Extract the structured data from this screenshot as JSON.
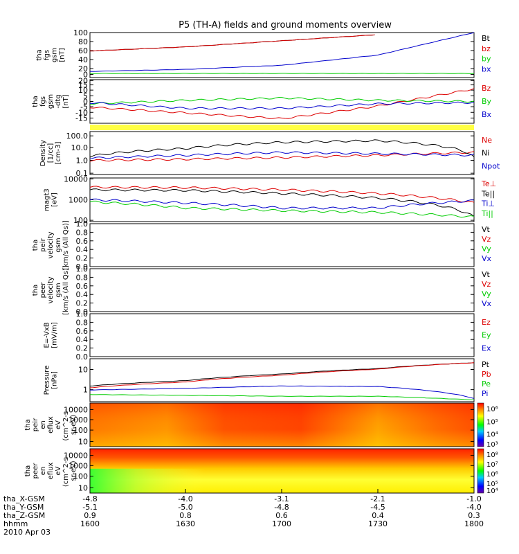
{
  "title": "P5 (TH-A) fields and ground moments overview",
  "colors": {
    "black": "#000000",
    "red": "#dd0000",
    "green": "#00cc00",
    "blue": "#0000cc",
    "yellow": "#ffff44"
  },
  "panels": [
    {
      "ylabel": [
        "tha",
        "fgs",
        "gsm",
        "[nT]"
      ],
      "ticks": [
        "100",
        "80",
        "60",
        "40",
        "20",
        "0"
      ],
      "legend": [
        {
          "t": "Bt",
          "c": "black"
        },
        {
          "t": "bz",
          "c": "red"
        },
        {
          "t": "by",
          "c": "green"
        },
        {
          "t": "bx",
          "c": "blue"
        }
      ]
    },
    {
      "ylabel": [
        "tha",
        "fgs",
        "gsm",
        "-dtg",
        "[nT]"
      ],
      "ticks": [
        "20",
        "15",
        "10",
        "5",
        "0",
        "-5",
        "-10",
        "-15"
      ],
      "legend": [
        {
          "t": "Bz",
          "c": "red"
        },
        {
          "t": "By",
          "c": "green"
        },
        {
          "t": "Bx",
          "c": "blue"
        }
      ]
    },
    {
      "ylabel": [
        "Density",
        "[1/cc]",
        "[cm-3]"
      ],
      "ticks": [
        "100.0",
        "10.0",
        "1.0",
        "0.1"
      ],
      "legend": [
        {
          "t": "Ne",
          "c": "red"
        },
        {
          "t": "Ni",
          "c": "black"
        },
        {
          "t": "Npot",
          "c": "blue"
        }
      ]
    },
    {
      "ylabel": [
        "magt3",
        "[eV]"
      ],
      "ticks": [
        "10000",
        "1000",
        "100"
      ],
      "legend": [
        {
          "t": "Te⊥",
          "c": "red"
        },
        {
          "t": "Te||",
          "c": "black"
        },
        {
          "t": "Ti⊥",
          "c": "blue"
        },
        {
          "t": "Ti||",
          "c": "green"
        }
      ]
    },
    {
      "ylabel": [
        "tha",
        "peir",
        "velocity",
        "gsm",
        "[km/s (All Qs)]"
      ],
      "ticks": [
        "1.0",
        "0.8",
        "0.6",
        "0.4",
        "0.2",
        "0.0"
      ],
      "legend": [
        {
          "t": "Vt",
          "c": "black"
        },
        {
          "t": "Vz",
          "c": "red"
        },
        {
          "t": "Vy",
          "c": "green"
        },
        {
          "t": "Vx",
          "c": "blue"
        }
      ]
    },
    {
      "ylabel": [
        "tha",
        "peer",
        "velocity",
        "gsm",
        "[km/s (All Qs)]"
      ],
      "ticks": [
        "1.0",
        "0.8",
        "0.6",
        "0.4",
        "0.2",
        "0.0"
      ],
      "legend": [
        {
          "t": "Vt",
          "c": "black"
        },
        {
          "t": "Vz",
          "c": "red"
        },
        {
          "t": "Vy",
          "c": "green"
        },
        {
          "t": "Vx",
          "c": "blue"
        }
      ]
    },
    {
      "ylabel": [
        "E=-VxB",
        "[mV/m]"
      ],
      "ticks": [
        "1.0",
        "0.8",
        "0.6",
        "0.4",
        "0.2",
        "0.0"
      ],
      "legend": [
        {
          "t": "Ez",
          "c": "red"
        },
        {
          "t": "Ey",
          "c": "green"
        },
        {
          "t": "Ex",
          "c": "blue"
        }
      ]
    },
    {
      "ylabel": [
        "Pressure",
        "[nPa]"
      ],
      "ticks": [
        "10",
        "1"
      ],
      "legend": [
        {
          "t": "Pt",
          "c": "black"
        },
        {
          "t": "Pb",
          "c": "red"
        },
        {
          "t": "Pe",
          "c": "green"
        },
        {
          "t": "Pi",
          "c": "blue"
        }
      ]
    },
    {
      "ylabel": [
        "tha",
        "peir",
        "en",
        "eflux",
        "eV",
        "(cm^2-s-",
        "sr-eV)"
      ],
      "ticks": [
        "10000",
        "1000",
        "100",
        "10"
      ],
      "colorbar": [
        "10⁶",
        "10⁵",
        "10⁴",
        "10³"
      ]
    },
    {
      "ylabel": [
        "tha",
        "peer",
        "en",
        "eflux",
        "eV",
        "(cm^2-s-",
        "sr-eV)"
      ],
      "ticks": [
        "10000",
        "1000",
        "100",
        "10"
      ],
      "colorbar": [
        "10⁸",
        "10⁷",
        "10⁶",
        "10⁵",
        "10⁴"
      ]
    }
  ],
  "xaxis": {
    "labels": [
      "tha_X-GSM",
      "tha_Y-GSM",
      "tha_Z-GSM",
      "hhmm",
      "2010 Apr 03"
    ],
    "rows": [
      [
        "-4.8",
        "-4.0",
        "-3.1",
        "-2.1",
        "-1.0"
      ],
      [
        "-5.1",
        "-5.0",
        "-4.8",
        "-4.5",
        "-4.0"
      ],
      [
        "0.9",
        "0.8",
        "0.6",
        "0.4",
        "0.3"
      ],
      [
        "1600",
        "1630",
        "1700",
        "1730",
        "1800"
      ]
    ]
  },
  "chart_data": [
    {
      "type": "line",
      "ylabel": "tha fgs gsm [nT]",
      "ylim": [
        -10,
        100
      ],
      "x": [
        "1600",
        "1630",
        "1700",
        "1730",
        "1800"
      ],
      "series": [
        {
          "name": "Bt",
          "values": [
            55,
            65,
            80,
            95,
            null
          ]
        },
        {
          "name": "bz",
          "values": [
            55,
            65,
            80,
            95,
            null
          ]
        },
        {
          "name": "by",
          "values": [
            0,
            0,
            0,
            0,
            0
          ]
        },
        {
          "name": "bx",
          "values": [
            5,
            10,
            20,
            45,
            100
          ]
        }
      ]
    },
    {
      "type": "line",
      "ylabel": "tha fgs gsm -dtg [nT]",
      "ylim": [
        -15,
        20
      ],
      "x": [
        "1600",
        "1630",
        "1700",
        "1730",
        "1800"
      ],
      "series": [
        {
          "name": "Bz",
          "values": [
            -3,
            -8,
            -13,
            -2,
            13
          ]
        },
        {
          "name": "By",
          "values": [
            0,
            3,
            5,
            3,
            2
          ]
        },
        {
          "name": "Bx",
          "values": [
            1,
            -4,
            -4,
            0,
            1
          ]
        }
      ]
    },
    {
      "type": "line",
      "ylabel": "Density [1/cc]",
      "yscale": "log",
      "ylim": [
        0.1,
        200
      ],
      "x": [
        "1600",
        "1630",
        "1700",
        "1730",
        "1800"
      ],
      "series": [
        {
          "name": "Ne",
          "values": [
            1.2,
            1.5,
            2,
            3,
            5
          ]
        },
        {
          "name": "Ni",
          "values": [
            2.5,
            10,
            30,
            40,
            2
          ]
        },
        {
          "name": "Npot",
          "values": [
            1.8,
            3,
            5,
            4,
            3
          ]
        }
      ]
    },
    {
      "type": "line",
      "ylabel": "magt3 [eV]",
      "yscale": "log",
      "ylim": [
        100,
        10000
      ],
      "x": [
        "1600",
        "1630",
        "1700",
        "1730",
        "1800"
      ],
      "series": [
        {
          "name": "Te⊥",
          "values": [
            4000,
            3800,
            3000,
            2000,
            700
          ]
        },
        {
          "name": "Te||",
          "values": [
            3000,
            2800,
            2000,
            1200,
            150
          ]
        },
        {
          "name": "Ti⊥",
          "values": [
            1000,
            700,
            400,
            400,
            900
          ]
        },
        {
          "name": "Ti||",
          "values": [
            800,
            400,
            300,
            250,
            150
          ]
        }
      ]
    },
    {
      "type": "line",
      "ylabel": "tha peir velocity gsm [km/s (All Qs)]",
      "ylim": [
        0,
        1
      ],
      "series": []
    },
    {
      "type": "line",
      "ylabel": "tha peer velocity gsm [km/s (All Qs)]",
      "ylim": [
        0,
        1
      ],
      "series": []
    },
    {
      "type": "line",
      "ylabel": "E=-VxB [mV/m]",
      "ylim": [
        0,
        1
      ],
      "series": []
    },
    {
      "type": "line",
      "ylabel": "Pressure [nPa]",
      "yscale": "log",
      "ylim": [
        0.2,
        50
      ],
      "x": [
        "1600",
        "1630",
        "1700",
        "1730",
        "1800"
      ],
      "series": [
        {
          "name": "Pt",
          "values": [
            1.5,
            3,
            7,
            14,
            30
          ]
        },
        {
          "name": "Pb",
          "values": [
            1.2,
            2.5,
            6,
            13,
            30
          ]
        },
        {
          "name": "Pe",
          "values": [
            0.5,
            0.45,
            0.4,
            0.4,
            0.25
          ]
        },
        {
          "name": "Pi",
          "values": [
            0.9,
            1.1,
            1.5,
            1.4,
            0.3
          ]
        }
      ]
    },
    {
      "type": "heatmap",
      "ylabel": "tha peir en eflux",
      "yscale": "log",
      "ylim": [
        5,
        20000
      ],
      "colorbar": "10^3 - 10^6"
    },
    {
      "type": "heatmap",
      "ylabel": "tha peer en eflux",
      "yscale": "log",
      "ylim": [
        5,
        20000
      ],
      "colorbar": "10^4 - 10^8"
    }
  ]
}
